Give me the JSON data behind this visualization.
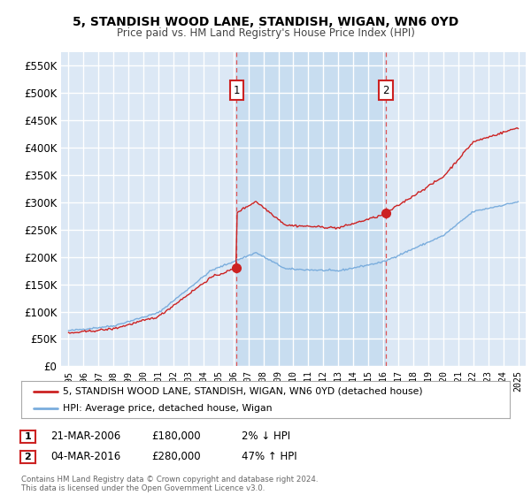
{
  "title": "5, STANDISH WOOD LANE, STANDISH, WIGAN, WN6 0YD",
  "subtitle": "Price paid vs. HM Land Registry's House Price Index (HPI)",
  "fig_bg_color": "#ffffff",
  "plot_bg_color": "#dce8f5",
  "highlight_bg_color": "#c8ddf0",
  "grid_color": "#ffffff",
  "sale1_date": 2006.22,
  "sale1_price": 180000,
  "sale1_label": "1",
  "sale2_date": 2016.17,
  "sale2_price": 280000,
  "sale2_label": "2",
  "hpi_color": "#7aaddd",
  "sale_line_color": "#cc2222",
  "sale_dot_color": "#cc2222",
  "vline_color": "#dd4444",
  "legend_sale": "5, STANDISH WOOD LANE, STANDISH, WIGAN, WN6 0YD (detached house)",
  "legend_hpi": "HPI: Average price, detached house, Wigan",
  "annotation1_date": "21-MAR-2006",
  "annotation1_price": "£180,000",
  "annotation1_hpi": "2% ↓ HPI",
  "annotation2_date": "04-MAR-2016",
  "annotation2_price": "£280,000",
  "annotation2_hpi": "47% ↑ HPI",
  "footer": "Contains HM Land Registry data © Crown copyright and database right 2024.\nThis data is licensed under the Open Government Licence v3.0.",
  "ylim_min": 0,
  "ylim_max": 575000,
  "xmin": 1994.5,
  "xmax": 2025.5,
  "yticks": [
    0,
    50000,
    100000,
    150000,
    200000,
    250000,
    300000,
    350000,
    400000,
    450000,
    500000,
    550000
  ]
}
